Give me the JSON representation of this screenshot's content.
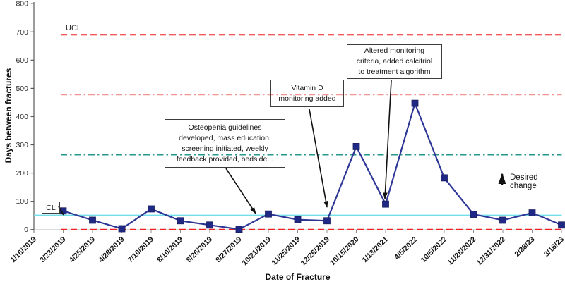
{
  "figure": {
    "y_axis_title": "Days between fractures",
    "x_axis_title": "Date of Fracture"
  },
  "colors": {
    "series_line": "#2e3796",
    "series_marker": "#1f2884",
    "ucl_line": "#ee2222",
    "lcl_line": "#ee2222",
    "upper_dashdot_line": "#f29595",
    "teal_dashdot_line": "#27988c",
    "cl_line": "#72dfeb",
    "annotation_border": "#3c3c3c",
    "arrow": "#111111",
    "y_axis": "#595959",
    "x_axis": "#a3a3a3"
  },
  "chart_data": {
    "type": "line",
    "title": "",
    "xlabel": "Date of Fracture",
    "ylabel": "Days between fractures",
    "ylim": [
      0,
      800
    ],
    "grid": false,
    "legend": "none",
    "y_ticks": [
      0,
      100,
      200,
      300,
      400,
      500,
      600,
      700,
      800
    ],
    "categories": [
      "1/16/2019",
      "3/23/2019",
      "4/25/2019",
      "4/28/2019",
      "7/10/2019",
      "8/10/2019",
      "8/26/2019",
      "8/27/2019",
      "10/21/2019",
      "11/25/2019",
      "12/26/2019",
      "10/15/2020",
      "1/13/2021",
      "4/5/2022",
      "10/5/2022",
      "11/28/2022",
      "12/31/2022",
      "2/28/23",
      "3/16/23"
    ],
    "series": [
      {
        "name": "Days between fractures",
        "marker": "square",
        "values": [
          null,
          66,
          33,
          3,
          73,
          31,
          16,
          1,
          55,
          35,
          31,
          294,
          90,
          447,
          183,
          54,
          33,
          59,
          16
        ]
      }
    ],
    "reference_lines": [
      {
        "name": "UCL",
        "label": "UCL",
        "value": 690,
        "style": "dashed",
        "color_key": "ucl_line"
      },
      {
        "name": "upper-limit-revised",
        "value": 478,
        "style": "dash-dot",
        "color_key": "upper_dashdot_line"
      },
      {
        "name": "midline-revised",
        "value": 265,
        "style": "dash-dot",
        "color_key": "teal_dashdot_line"
      },
      {
        "name": "CL",
        "label": "CL",
        "value": 50,
        "style": "solid",
        "color_key": "cl_line",
        "full_width": true
      },
      {
        "name": "LCL",
        "value": 0,
        "style": "dashed",
        "color_key": "lcl_line"
      }
    ],
    "annotations": [
      {
        "name": "osteopenia-note",
        "lines": [
          "Osteopenia guidelines",
          "developed, mass education,",
          "screening initiated, weekly",
          "feedback provided, bedside..."
        ],
        "target_category": "10/21/2019"
      },
      {
        "name": "vitamin-d-note",
        "lines": [
          "Vitamin D",
          "monitoring added"
        ],
        "target_category": "12/26/2019"
      },
      {
        "name": "altered-monitoring-note",
        "lines": [
          "Altered monitoring",
          "criteria, added calcitriol",
          "to treatment algorithm"
        ],
        "target_category": "1/13/2021"
      },
      {
        "name": "desired-change-note",
        "lines": [
          "Desired change"
        ]
      }
    ]
  }
}
